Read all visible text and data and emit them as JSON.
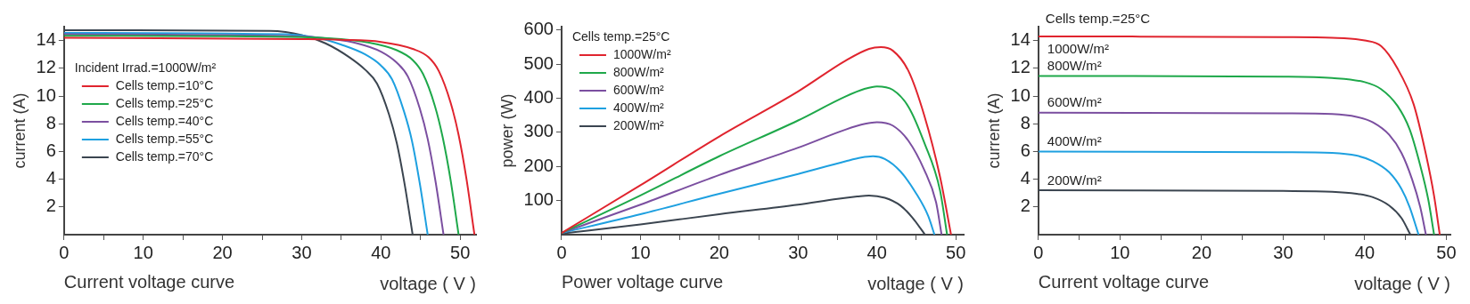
{
  "chart_data": [
    {
      "type": "line",
      "xlabel": "voltage ( V )",
      "ylabel": "current (A)",
      "legend_title": "Incident Irrad.=1000W/m²",
      "legend": "left",
      "annotations": [
        "Current voltage curve"
      ],
      "xlim": [
        0,
        52
      ],
      "xticks": [
        0,
        {
          "value": 5,
          "label": null
        },
        10,
        {
          "value": 15,
          "label": null
        },
        20,
        {
          "value": 25,
          "label": null
        },
        30,
        {
          "value": 35,
          "label": null
        },
        40,
        {
          "value": 45,
          "label": null
        },
        50
      ],
      "ylim": [
        0,
        15
      ],
      "yticks": [
        2,
        4,
        6,
        8,
        10,
        12,
        14
      ],
      "grid": false,
      "series": [
        {
          "name": "Cells temp.=10°C",
          "color": "#e0242e",
          "x": [
            0,
            30,
            35,
            40,
            44,
            46,
            47.3,
            48.8,
            49.8,
            50.8,
            51.8
          ],
          "values": [
            14.2,
            14.1,
            14.05,
            13.9,
            13.4,
            12.8,
            11.8,
            9.5,
            7.2,
            4.0,
            0
          ]
        },
        {
          "name": "Cells temp.=25°C",
          "color": "#1ea84a",
          "x": [
            0,
            30,
            35,
            38,
            42,
            44,
            45.3,
            46.8,
            47.8,
            48.8,
            49.8
          ],
          "values": [
            14.35,
            14.25,
            14.1,
            13.9,
            13.3,
            12.6,
            11.6,
            9.3,
            7.0,
            3.9,
            0
          ]
        },
        {
          "name": "Cells temp.=40°C",
          "color": "#7b4fa0",
          "x": [
            0,
            30,
            34,
            37,
            40,
            42,
            43.4,
            44.9,
            45.9,
            46.9,
            47.9
          ],
          "values": [
            14.45,
            14.3,
            14.1,
            13.8,
            13.2,
            12.4,
            11.4,
            9.1,
            6.9,
            3.8,
            0
          ]
        },
        {
          "name": "Cells temp.=55°C",
          "color": "#1ea0e0",
          "x": [
            0,
            28,
            32,
            35,
            38,
            40,
            41.4,
            42.9,
            43.9,
            44.9,
            45.9
          ],
          "values": [
            14.55,
            14.45,
            14.2,
            13.7,
            13.0,
            12.2,
            11.2,
            8.9,
            6.8,
            3.7,
            0
          ]
        },
        {
          "name": "Cells temp.=70°C",
          "color": "#3b4550",
          "x": [
            0,
            26,
            30,
            33,
            36,
            38,
            39.5,
            41,
            42,
            43,
            44
          ],
          "values": [
            14.75,
            14.7,
            14.4,
            13.8,
            12.8,
            11.9,
            10.9,
            8.7,
            6.6,
            3.6,
            0
          ]
        }
      ]
    },
    {
      "type": "line",
      "xlabel": "voltage ( V )",
      "ylabel": "power (W)",
      "legend_title": "Cells temp.=25°C",
      "legend": "top left",
      "annotations": [
        "Power voltage curve"
      ],
      "xlim": [
        0,
        51
      ],
      "xticks": [
        0,
        {
          "value": 5,
          "label": null
        },
        10,
        {
          "value": 15,
          "label": null
        },
        20,
        {
          "value": 25,
          "label": null
        },
        30,
        {
          "value": 35,
          "label": null
        },
        40,
        {
          "value": 45,
          "label": null
        },
        50
      ],
      "ylim": [
        0,
        610
      ],
      "yticks": [
        100,
        200,
        300,
        400,
        500,
        600
      ],
      "grid": false,
      "series": [
        {
          "name": "1000W/m²",
          "color": "#e0242e",
          "x": [
            0,
            10,
            20,
            30,
            36,
            39,
            40.5,
            42,
            44,
            46,
            48,
            49.4
          ],
          "values": [
            5,
            145,
            288,
            420,
            510,
            545,
            550,
            540,
            480,
            350,
            170,
            0
          ]
        },
        {
          "name": "800W/m²",
          "color": "#1ea84a",
          "x": [
            0,
            10,
            20,
            30,
            36,
            38.5,
            40,
            42,
            44,
            46,
            48,
            48.9
          ],
          "values": [
            5,
            115,
            230,
            335,
            405,
            428,
            435,
            425,
            375,
            270,
            130,
            0
          ]
        },
        {
          "name": "600W/m²",
          "color": "#7b4fa0",
          "x": [
            0,
            10,
            20,
            30,
            36,
            38.5,
            40,
            42,
            44,
            46,
            47.5,
            48.2
          ],
          "values": [
            5,
            88,
            175,
            255,
            308,
            325,
            330,
            320,
            275,
            190,
            95,
            0
          ]
        },
        {
          "name": "400W/m²",
          "color": "#1ea0e0",
          "x": [
            0,
            10,
            20,
            30,
            36,
            38,
            39.5,
            41,
            43,
            45,
            46.5,
            47.3
          ],
          "values": [
            5,
            60,
            120,
            178,
            215,
            226,
            230,
            222,
            185,
            120,
            55,
            0
          ]
        },
        {
          "name": "200W/m²",
          "color": "#3b4550",
          "x": [
            0,
            10,
            20,
            30,
            35,
            37.5,
            39,
            41,
            43,
            44.5,
            46.1
          ],
          "values": [
            3,
            30,
            60,
            88,
            105,
            112,
            115,
            108,
            85,
            50,
            0
          ]
        }
      ]
    },
    {
      "type": "line",
      "xlabel": "voltage ( V )",
      "ylabel": "current (A)",
      "annotations": [
        "Current voltage curve",
        "Cells temp.=25°C"
      ],
      "xlim": [
        0,
        50.5
      ],
      "xticks": [
        0,
        {
          "value": 5,
          "label": null
        },
        10,
        {
          "value": 15,
          "label": null
        },
        20,
        {
          "value": 25,
          "label": null
        },
        30,
        {
          "value": 35,
          "label": null
        },
        40,
        {
          "value": 45,
          "label": null
        },
        50
      ],
      "ylim": [
        0,
        15
      ],
      "yticks": [
        2,
        4,
        6,
        8,
        10,
        12,
        14
      ],
      "grid": false,
      "series": [
        {
          "name": "1000W/m²",
          "color": "#e0242e",
          "x": [
            0,
            30,
            36,
            40,
            42,
            44,
            46,
            47.5,
            48.5,
            49.2
          ],
          "values": [
            14.3,
            14.25,
            14.2,
            14.0,
            13.6,
            12.0,
            9.4,
            5.8,
            2.8,
            0
          ]
        },
        {
          "name": "800W/m²",
          "color": "#1ea84a",
          "x": [
            0,
            30,
            36,
            40,
            42,
            44,
            45.5,
            46.8,
            47.8,
            48.5
          ],
          "values": [
            11.45,
            11.4,
            11.3,
            11.0,
            10.5,
            9.3,
            7.6,
            5.0,
            2.5,
            0
          ]
        },
        {
          "name": "600W/m²",
          "color": "#7b4fa0",
          "x": [
            0,
            30,
            36,
            39,
            41,
            43,
            44.5,
            45.8,
            46.8,
            47.5
          ],
          "values": [
            8.8,
            8.75,
            8.7,
            8.5,
            8.1,
            7.2,
            5.9,
            4.0,
            2.0,
            0
          ]
        },
        {
          "name": "400W/m²",
          "color": "#1ea0e0",
          "x": [
            0,
            30,
            36,
            39,
            41,
            43,
            44.5,
            45.5,
            46.6
          ],
          "values": [
            6.0,
            5.95,
            5.9,
            5.7,
            5.3,
            4.5,
            3.3,
            2.0,
            0
          ]
        },
        {
          "name": "200W/m²",
          "color": "#3b4550",
          "x": [
            0,
            30,
            36,
            39,
            41,
            43,
            44.5,
            45.6
          ],
          "values": [
            3.2,
            3.15,
            3.1,
            2.95,
            2.7,
            2.1,
            1.2,
            0
          ]
        }
      ]
    }
  ]
}
